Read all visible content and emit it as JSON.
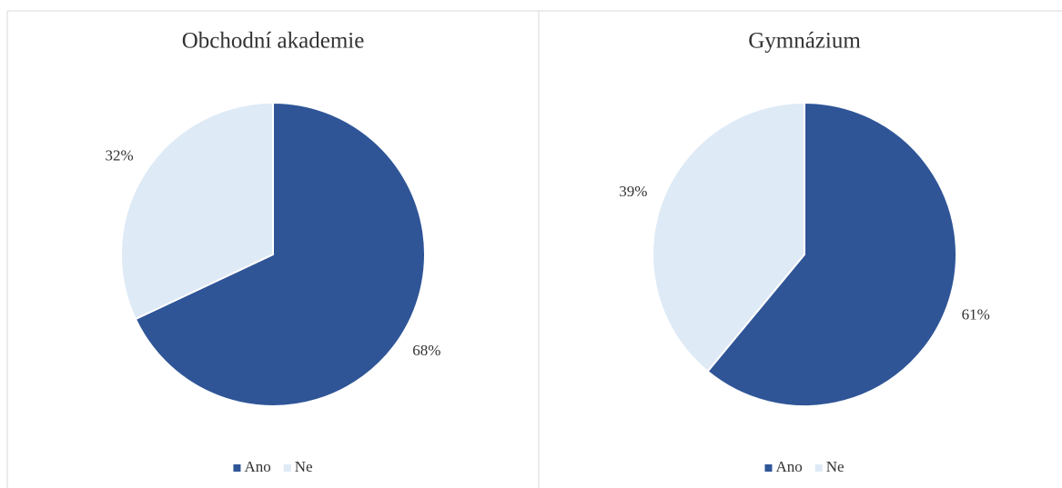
{
  "chart_data": [
    {
      "type": "pie",
      "title": "Obchodní akademie",
      "categories": [
        "Ano",
        "Ne"
      ],
      "values": [
        68,
        32
      ],
      "value_labels": [
        "68%",
        "32%"
      ],
      "colors": [
        "#2f5597",
        "#deeaf6"
      ],
      "legend": "bottom"
    },
    {
      "type": "pie",
      "title": "Gymnázium",
      "categories": [
        "Ano",
        "Ne"
      ],
      "values": [
        61,
        39
      ],
      "value_labels": [
        "61%",
        "39%"
      ],
      "colors": [
        "#2f5597",
        "#deeaf6"
      ],
      "legend": "bottom"
    }
  ]
}
